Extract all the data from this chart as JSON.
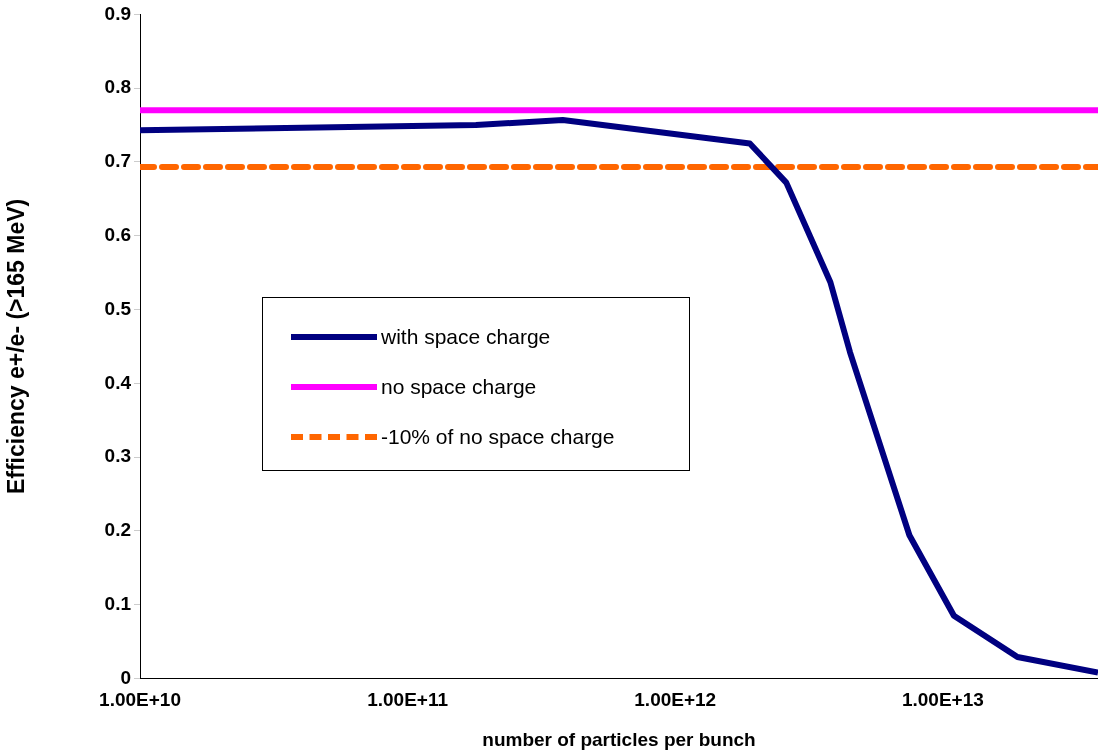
{
  "chart_data": {
    "type": "line",
    "xlabel": "number of particles per bunch",
    "ylabel": "Efficiency e+/e- (>165 MeV)",
    "log": "x",
    "xlim": [
      10000000000.0,
      38000000000000.0
    ],
    "xticks": [
      {
        "value": 10000000000.0,
        "label": "1.00E+10"
      },
      {
        "value": 100000000000.0,
        "label": "1.00E+11"
      },
      {
        "value": 1000000000000.0,
        "label": "1.00E+12"
      },
      {
        "value": 10000000000000.0,
        "label": "1.00E+13"
      }
    ],
    "ylim": [
      0,
      0.9
    ],
    "yticks": [
      0,
      0.1,
      0.2,
      0.3,
      0.4,
      0.5,
      0.6,
      0.7,
      0.8,
      0.9
    ],
    "grid": false,
    "legend": "center",
    "marker": "none",
    "series": [
      {
        "name": "with space charge",
        "color": "#000080",
        "line_style": "solid",
        "x": [
          10000000000.0,
          180000000000.0,
          380000000000.0,
          1900000000000.0,
          2600000000000.0,
          3800000000000.0,
          4500000000000.0,
          7500000000000.0,
          11000000000000.0,
          19000000000000.0,
          38000000000000.0
        ],
        "values": [
          0.743,
          0.75,
          0.757,
          0.725,
          0.672,
          0.537,
          0.442,
          0.194,
          0.085,
          0.029,
          0.008
        ]
      },
      {
        "name": "no space charge",
        "color": "#ff00ff",
        "line_style": "solid",
        "x": [
          10000000000.0,
          38000000000000.0
        ],
        "values": [
          0.77,
          0.77
        ]
      },
      {
        "name": "-10% of no space charge",
        "color": "#ff6600",
        "line_style": "dashed",
        "x": [
          10000000000.0,
          38000000000000.0
        ],
        "values": [
          0.693,
          0.693
        ]
      }
    ]
  }
}
